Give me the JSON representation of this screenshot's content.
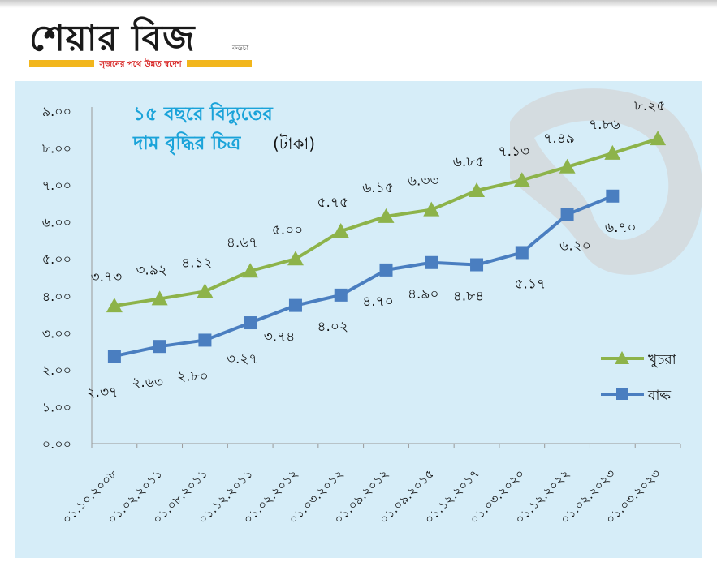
{
  "masthead": {
    "brand": "শেয়ার বিজ",
    "brand_sub": "কড়চা",
    "tagline": "সৃজনের পথে উন্নত স্বদেশ"
  },
  "chart_data": {
    "type": "line",
    "title_line1": "১৫ বছরে বিদ্যুতের",
    "title_line2": "দাম বৃদ্ধির চিত্র",
    "title_unit": "(টাকা)",
    "categories": [
      "০১.১০.২০০৮",
      "০১.০২.২০১১",
      "০১.০৮.২০১১",
      "০১.১২.২০১১",
      "০১.০২.২০১২",
      "০১.০৩.২০১২",
      "০১.০৯.২০১২",
      "০১.০৯.২০১৫",
      "০১.১২.২০১৭",
      "০১.০৩.২০২০",
      "০১.১২.২০২২",
      "০১.০২.২০২৩",
      "০১.০৩.২০২৩"
    ],
    "y_ticks": [
      "০.০০",
      "১.০০",
      "২.০০",
      "৩.০০",
      "৪.০০",
      "৫.০০",
      "৬.০০",
      "৭.০০",
      "৮.০০",
      "৯.০০"
    ],
    "ylim": [
      0,
      9
    ],
    "grid": false,
    "legend_position": "right",
    "series": [
      {
        "name": "খুচরা",
        "color": "#8db34a",
        "marker": "triangle",
        "values": [
          3.73,
          3.92,
          4.12,
          4.67,
          5.0,
          5.75,
          6.15,
          6.33,
          6.85,
          7.13,
          7.49,
          7.86,
          8.25
        ],
        "labels": [
          "৩.৭৩",
          "৩.৯২",
          "৪.১২",
          "৪.৬৭",
          "৫.০০",
          "৫.৭৫",
          "৬.১৫",
          "৬.৩৩",
          "৬.৮৫",
          "৭.১৩",
          "৭.৪৯",
          "৭.৮৬",
          "৮.২৫"
        ]
      },
      {
        "name": "বাল্ক",
        "color": "#4a7ec0",
        "marker": "square",
        "values": [
          2.37,
          2.63,
          2.8,
          3.27,
          3.74,
          4.02,
          4.7,
          4.9,
          4.84,
          5.17,
          6.2,
          6.7,
          null
        ],
        "labels": [
          "২.৩৭",
          "২.৬৩",
          "২.৮০",
          "৩.২৭",
          "৩.৭৪",
          "৪.০২",
          "৪.৭০",
          "৪.৯০",
          "৪.৮৪",
          "৫.১৭",
          "৬.২০",
          "৬.৭০",
          ""
        ]
      }
    ]
  }
}
